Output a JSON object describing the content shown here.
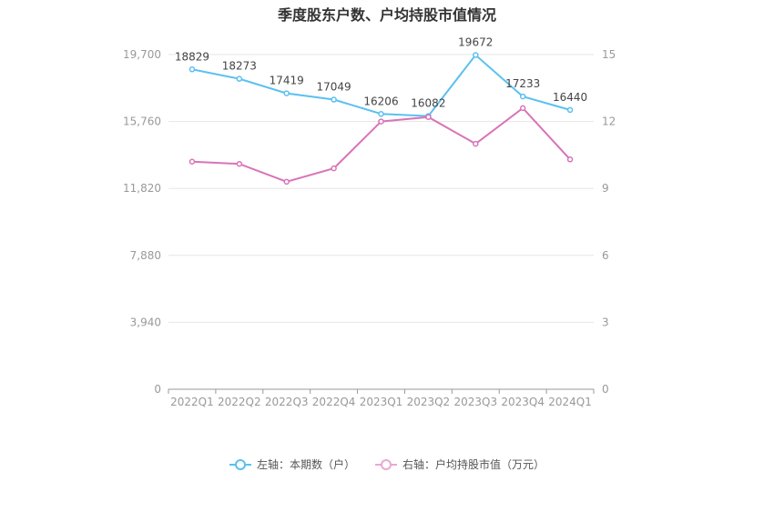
{
  "title": "季度股东户数、户均持股市值情况",
  "legend": {
    "left_label": "左轴：本期数（户）",
    "right_label": "右轴：户均持股市值（万元）"
  },
  "colors": {
    "left_series": "#5bc0f0",
    "right_series": "#d874b8",
    "grid": "#e6e6e6",
    "axis": "#cccccc"
  },
  "chart_data": {
    "type": "line",
    "title": "季度股东户数、户均持股市值情况",
    "categories": [
      "2022Q1",
      "2022Q2",
      "2022Q3",
      "2022Q4",
      "2023Q1",
      "2023Q2",
      "2023Q3",
      "2023Q4",
      "2024Q1"
    ],
    "left_axis": {
      "ticks": [
        "0",
        "3,940",
        "7,880",
        "11,820",
        "15,760",
        "19,700"
      ],
      "min": 0,
      "max": 19700
    },
    "right_axis": {
      "ticks": [
        "0",
        "3",
        "6",
        "9",
        "12",
        "15"
      ],
      "min": 0,
      "max": 15
    },
    "series": [
      {
        "name": "左轴：本期数（户）",
        "axis": "left",
        "values": [
          18829,
          18273,
          17419,
          17049,
          16206,
          16082,
          19672,
          17233,
          16440
        ],
        "labels": [
          "18829",
          "18273",
          "17419",
          "17049",
          "16206",
          "16082",
          "19672",
          "17233",
          "16440"
        ]
      },
      {
        "name": "右轴：户均持股市值（万元）",
        "axis": "right",
        "values": [
          10.2,
          10.1,
          9.3,
          9.9,
          12.0,
          12.2,
          11.0,
          12.6,
          10.3
        ]
      }
    ],
    "grid": true,
    "legend_position": "bottom"
  }
}
